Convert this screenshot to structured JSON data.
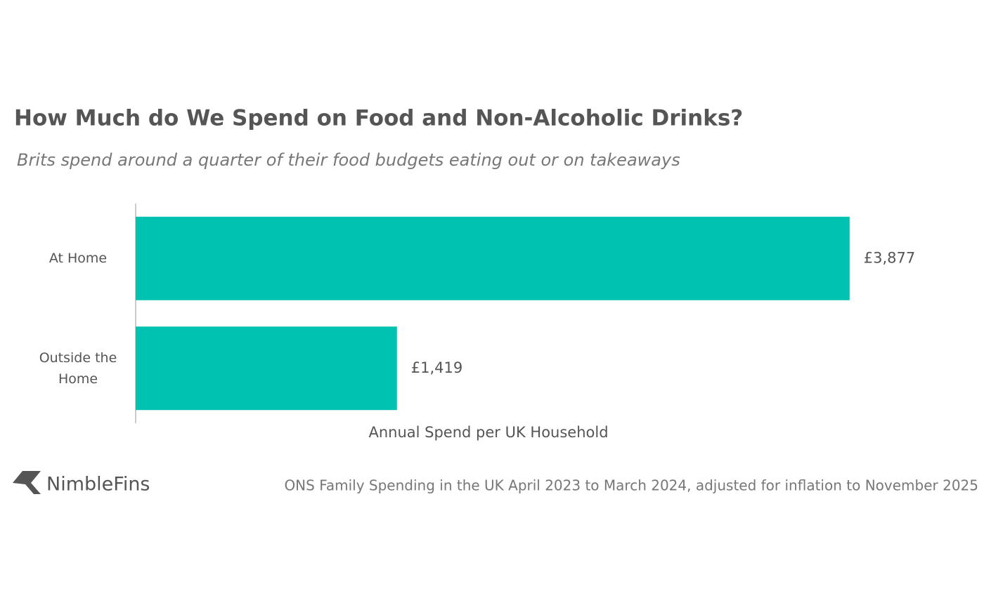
{
  "chart_data": {
    "type": "barh",
    "title": "How Much do We Spend on Food and Non-Alcoholic Drinks?",
    "subtitle": "Brits spend around a quarter of their food budgets eating out or on takeaways",
    "categories": [
      "At Home",
      "Outside the Home"
    ],
    "values": [
      3877,
      1419
    ],
    "value_labels": [
      "£3,877",
      "£1,419"
    ],
    "color": "#00c2b0",
    "xlabel": "Annual Spend per UK Household",
    "xlim": [
      0,
      4000
    ]
  },
  "footer": {
    "brand": "NimbleFins",
    "source": "ONS Family Spending in the UK April 2023 to March 2024, adjusted for inflation to November 2025"
  }
}
